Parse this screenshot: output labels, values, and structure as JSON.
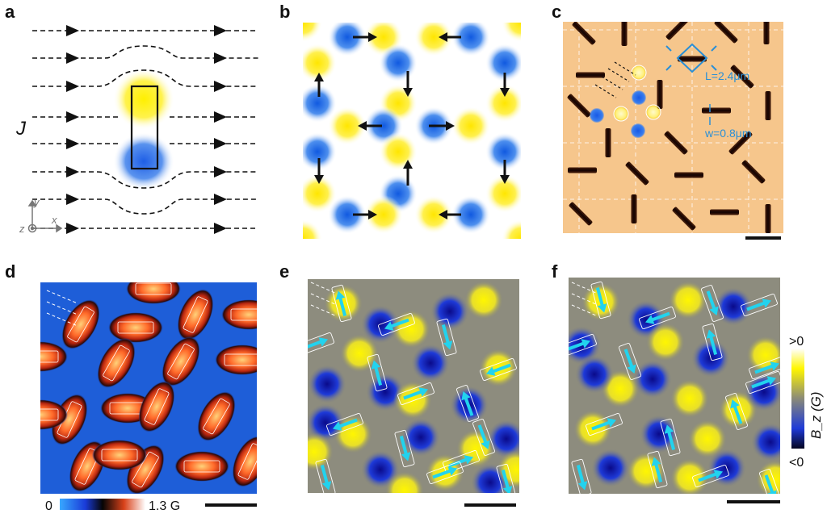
{
  "panel_labels": [
    "a",
    "b",
    "c",
    "d",
    "e",
    "f"
  ],
  "panel_a": {
    "current_symbol": "J",
    "axis_y": "y",
    "axis_x": "x",
    "axis_z": "z"
  },
  "panel_c": {
    "length_label": "L=2.4μm",
    "width_label": "w=0.8μm"
  },
  "panel_d": {
    "colorbar_min": "0",
    "colorbar_max": "1.3 G"
  },
  "panel_f": {
    "colorbar_top": ">0",
    "colorbar_bottom": "<0",
    "colorbar_title": "B_z (G)"
  },
  "colors": {
    "yellow": "#ffe600",
    "blue": "#1a66e6",
    "arrow_cyan": "#22d3ee",
    "c_bg": "#f6c88f",
    "annot_blue": "#2a8fd6"
  }
}
